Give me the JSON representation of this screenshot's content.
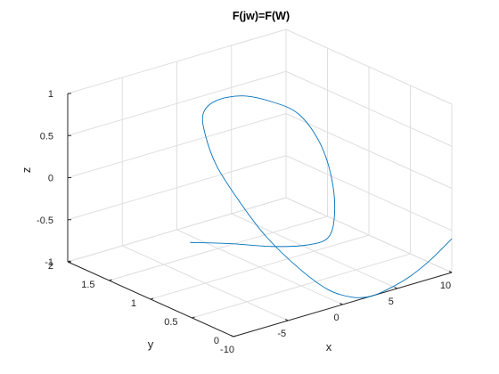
{
  "chart_data": {
    "type": "line3d",
    "title": "F(jw)=F(W)",
    "xlabel": "x",
    "ylabel": "y",
    "zlabel": "z",
    "xlim": [
      -10,
      10
    ],
    "ylim": [
      0,
      2
    ],
    "zlim": [
      -1,
      1
    ],
    "xticks": [
      -10,
      -5,
      0,
      5,
      10
    ],
    "yticks": [
      0,
      0.5,
      1,
      1.5,
      2
    ],
    "zticks": [
      -1,
      -0.5,
      0,
      0.5,
      1
    ],
    "xtick_labels": [
      "-10",
      "-5",
      "0",
      "5",
      "10"
    ],
    "ytick_labels": [
      "0",
      "0.5",
      "1",
      "1.5",
      "2"
    ],
    "ztick_labels": [
      "-1",
      "-0.5",
      "0",
      "0.5",
      "1"
    ],
    "grid": true,
    "box": "open",
    "line_color": "#0072BD",
    "axis_color": "#262626",
    "grid_color": "#dfdfdf",
    "series": [
      {
        "points": [
          [
            10,
            0,
            -0.6
          ],
          [
            8,
            0,
            -0.78
          ],
          [
            6,
            0,
            -0.91
          ],
          [
            4,
            0,
            -0.98
          ],
          [
            2.5,
            0,
            -1.0
          ],
          [
            1.2,
            0.05,
            -0.98
          ],
          [
            0.2,
            0.2,
            -0.92
          ],
          [
            -0.5,
            0.45,
            -0.76
          ],
          [
            -1.0,
            0.8,
            -0.5
          ],
          [
            -1.2,
            1.1,
            -0.2
          ],
          [
            -1.3,
            1.35,
            0.1
          ],
          [
            -1.2,
            1.5,
            0.4
          ],
          [
            -1.0,
            1.55,
            0.62
          ],
          [
            -0.6,
            1.45,
            0.8
          ],
          [
            -0.1,
            1.2,
            0.95
          ],
          [
            0.3,
            0.9,
            1.0
          ],
          [
            0.5,
            0.6,
            0.98
          ],
          [
            0.55,
            0.35,
            0.75
          ],
          [
            0.5,
            0.2,
            0.4
          ],
          [
            0.4,
            0.15,
            0.0
          ],
          [
            0.2,
            0.2,
            -0.3
          ],
          [
            -0.3,
            0.4,
            -0.46
          ],
          [
            -2,
            0.6,
            -0.5
          ],
          [
            -4,
            0.85,
            -0.5
          ],
          [
            -6,
            1.05,
            -0.5
          ]
        ]
      }
    ]
  }
}
